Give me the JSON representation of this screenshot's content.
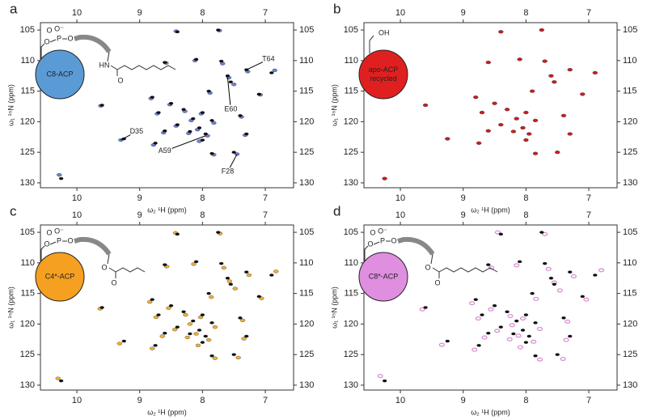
{
  "chart_data": [
    {
      "type": "scatter",
      "letter": "a",
      "xlabel": "ω₂ ¹H (ppm)",
      "ylabel": "ω₁ ¹⁵N (ppm)",
      "xlim": [
        10.58,
        6.55
      ],
      "ylim": [
        130.8,
        103.8
      ],
      "xticks": [
        10,
        9,
        8,
        7
      ],
      "yticks": [
        105,
        110,
        115,
        120,
        125,
        130
      ],
      "label": [
        "C8-ACP"
      ],
      "label_color": "#5b9bd5",
      "structure": [
        "O",
        "O⁻",
        "P",
        "O",
        "O",
        "HN",
        "O"
      ],
      "series": [
        {
          "color": "#6b82d8",
          "x": [
            8.42,
            7.73,
            8.12,
            8.58,
            7.68,
            7.28,
            6.85,
            7.58,
            7.5,
            8.82,
            7.88,
            7.08,
            9.62,
            8.52,
            8.28,
            8.02,
            8.18,
            7.82,
            8.42,
            8.08,
            8.22,
            7.92,
            8.62,
            7.32,
            8.05,
            9.3,
            8.78,
            7.82,
            7.45,
            10.28,
            7.38,
            8.72
          ],
          "values": [
            105.2,
            105.1,
            110.0,
            110.4,
            110.5,
            111.8,
            111.6,
            112.8,
            113.9,
            116.2,
            115.3,
            115.6,
            117.4,
            117.2,
            118.3,
            118.7,
            119.8,
            120.2,
            120.7,
            121.3,
            121.9,
            122.3,
            121.8,
            122.2,
            123.2,
            123.0,
            123.8,
            125.4,
            125.3,
            128.7,
            119.2,
            118.7
          ]
        },
        {
          "color": "#111111",
          "x": [
            8.4,
            7.75,
            8.1,
            8.6,
            7.7,
            7.3,
            6.9,
            7.6,
            7.55,
            8.8,
            7.9,
            7.1,
            9.6,
            8.5,
            8.3,
            8.0,
            8.15,
            7.85,
            8.4,
            8.05,
            8.2,
            7.95,
            8.6,
            7.3,
            8.0,
            9.25,
            8.75,
            7.85,
            7.5,
            10.25,
            7.4,
            8.7
          ],
          "values": [
            105.3,
            105.0,
            109.8,
            110.3,
            110.1,
            111.5,
            112.0,
            112.5,
            113.5,
            116.0,
            115.0,
            115.5,
            117.3,
            117.0,
            118.0,
            118.5,
            119.5,
            119.8,
            120.5,
            121.0,
            121.6,
            122.0,
            121.5,
            122.0,
            123.0,
            122.8,
            123.5,
            125.2,
            125.0,
            129.3,
            119.0,
            118.5
          ]
        }
      ],
      "annotations": [
        {
          "text": "T64",
          "x": 6.95,
          "y": 109.8,
          "target": [
            7.3,
            111.5
          ]
        },
        {
          "text": "E60",
          "x": 7.55,
          "y": 118.0,
          "target": [
            7.6,
            112.8
          ]
        },
        {
          "text": "D35",
          "x": 9.05,
          "y": 121.6,
          "target": [
            9.3,
            123.0
          ]
        },
        {
          "text": "A59",
          "x": 8.6,
          "y": 124.8,
          "target": [
            7.95,
            122.3
          ]
        },
        {
          "text": "F28",
          "x": 7.6,
          "y": 128.2,
          "target": [
            7.45,
            125.3
          ]
        }
      ]
    },
    {
      "type": "scatter",
      "letter": "b",
      "xlabel": "ω₂ ¹H (ppm)",
      "ylabel": "ω₁ ¹⁵N (ppm)",
      "xlim": [
        10.58,
        6.55
      ],
      "ylim": [
        130.8,
        103.8
      ],
      "xticks": [
        10,
        9,
        8,
        7
      ],
      "yticks": [
        105,
        110,
        115,
        120,
        125,
        130
      ],
      "label": [
        "apo-ACP",
        "recycled"
      ],
      "label_color": "#e02020",
      "structure": [
        "OH"
      ],
      "series": [
        {
          "color": "#c81e1e",
          "x": [
            8.4,
            7.75,
            8.1,
            8.6,
            7.7,
            7.3,
            6.9,
            7.6,
            7.55,
            8.8,
            7.9,
            7.1,
            9.6,
            8.5,
            8.3,
            8.0,
            8.15,
            7.85,
            8.4,
            8.05,
            8.2,
            7.95,
            8.6,
            7.3,
            8.0,
            9.25,
            8.75,
            7.85,
            7.5,
            10.25,
            7.4,
            8.7
          ],
          "values": [
            105.3,
            105.0,
            109.8,
            110.3,
            110.1,
            111.5,
            112.0,
            112.5,
            113.5,
            116.0,
            115.0,
            115.5,
            117.3,
            117.0,
            118.0,
            118.5,
            119.5,
            119.8,
            120.5,
            121.0,
            121.6,
            122.0,
            121.5,
            122.0,
            123.0,
            122.8,
            123.5,
            125.2,
            125.0,
            129.3,
            119.0,
            118.5
          ]
        }
      ]
    },
    {
      "type": "scatter",
      "letter": "c",
      "xlabel": "ω₂ ¹H (ppm)",
      "ylabel": "ω₁ ¹⁵N (ppm)",
      "xlim": [
        10.58,
        6.55
      ],
      "ylim": [
        130.8,
        103.8
      ],
      "xticks": [
        10,
        9,
        8,
        7
      ],
      "yticks": [
        105,
        110,
        115,
        120,
        125,
        130
      ],
      "label": [
        "C4*-ACP"
      ],
      "label_color": "#f5a020",
      "structure": [
        "O",
        "O⁻",
        "P",
        "O",
        "O",
        "O",
        "O"
      ],
      "series": [
        {
          "color": "#f2b030",
          "x": [
            8.43,
            7.72,
            8.14,
            8.57,
            7.66,
            7.26,
            6.83,
            7.57,
            7.48,
            8.84,
            7.86,
            7.06,
            9.63,
            8.54,
            8.27,
            8.03,
            8.2,
            7.8,
            8.44,
            8.1,
            8.24,
            7.9,
            8.64,
            7.34,
            8.07,
            9.32,
            8.8,
            7.8,
            7.43,
            10.3,
            7.36,
            8.74
          ],
          "values": [
            105.1,
            105.2,
            110.2,
            110.6,
            110.8,
            112.0,
            111.4,
            113.0,
            114.2,
            116.4,
            115.6,
            115.8,
            117.5,
            117.4,
            118.5,
            118.9,
            120.0,
            120.5,
            120.9,
            121.6,
            122.2,
            122.6,
            122.0,
            122.4,
            123.5,
            123.2,
            124.0,
            125.6,
            125.5,
            128.9,
            119.4,
            118.9
          ]
        },
        {
          "color": "#111111",
          "x": [
            8.4,
            7.75,
            8.1,
            8.6,
            7.7,
            7.3,
            6.9,
            7.6,
            7.55,
            8.8,
            7.9,
            7.1,
            9.6,
            8.5,
            8.3,
            8.0,
            8.15,
            7.85,
            8.4,
            8.05,
            8.2,
            7.95,
            8.6,
            7.3,
            8.0,
            9.25,
            8.75,
            7.85,
            7.5,
            10.25,
            7.4,
            8.7
          ],
          "values": [
            105.3,
            105.0,
            109.8,
            110.3,
            110.1,
            111.5,
            112.0,
            112.5,
            113.5,
            116.0,
            115.0,
            115.5,
            117.3,
            117.0,
            118.0,
            118.5,
            119.5,
            119.8,
            120.5,
            121.0,
            121.6,
            122.0,
            121.5,
            122.0,
            123.0,
            122.8,
            123.5,
            125.2,
            125.0,
            129.3,
            119.0,
            118.5
          ]
        }
      ]
    },
    {
      "type": "scatter",
      "letter": "d",
      "xlabel": "ω₂ ¹H (ppm)",
      "ylabel": "ω₁ ¹⁵N (ppm)",
      "xlim": [
        10.58,
        6.55
      ],
      "ylim": [
        130.8,
        103.8
      ],
      "xticks": [
        10,
        9,
        8,
        7
      ],
      "yticks": [
        105,
        110,
        115,
        120,
        125,
        130
      ],
      "label": [
        "C8*-ACP"
      ],
      "label_color": "#e08ee0",
      "structure": [
        "O",
        "O⁻",
        "P",
        "O",
        "O",
        "O",
        "O"
      ],
      "series": [
        {
          "color": "#d98ad0",
          "x": [
            8.45,
            7.7,
            8.15,
            8.55,
            7.64,
            7.24,
            6.8,
            7.55,
            7.46,
            8.86,
            7.84,
            7.04,
            9.65,
            8.56,
            8.25,
            8.05,
            8.22,
            7.78,
            8.46,
            8.12,
            8.26,
            7.88,
            8.66,
            7.36,
            8.09,
            9.34,
            8.82,
            7.78,
            7.41,
            10.32,
            7.34,
            8.76
          ],
          "values": [
            105.0,
            105.3,
            110.4,
            110.8,
            111.0,
            112.2,
            111.2,
            113.2,
            114.5,
            116.6,
            115.9,
            116.0,
            117.6,
            117.6,
            118.7,
            119.1,
            120.2,
            120.8,
            121.1,
            121.9,
            122.5,
            122.9,
            122.2,
            122.6,
            123.8,
            123.4,
            124.2,
            125.8,
            125.7,
            128.5,
            119.6,
            119.1
          ]
        },
        {
          "color": "#111111",
          "x": [
            8.4,
            7.75,
            8.1,
            8.6,
            7.7,
            7.3,
            6.9,
            7.6,
            7.55,
            8.8,
            7.9,
            7.1,
            9.6,
            8.5,
            8.3,
            8.0,
            8.15,
            7.85,
            8.4,
            8.05,
            8.2,
            7.95,
            8.6,
            7.3,
            8.0,
            9.25,
            8.75,
            7.85,
            7.5,
            10.25,
            7.4,
            8.7
          ],
          "values": [
            105.3,
            105.0,
            109.8,
            110.3,
            110.1,
            111.5,
            112.0,
            112.5,
            113.5,
            116.0,
            115.0,
            115.5,
            117.3,
            117.0,
            118.0,
            118.5,
            119.5,
            119.8,
            120.5,
            121.0,
            121.6,
            122.0,
            121.5,
            122.0,
            123.0,
            122.8,
            123.5,
            125.2,
            125.0,
            129.3,
            119.0,
            118.5
          ]
        }
      ]
    }
  ]
}
